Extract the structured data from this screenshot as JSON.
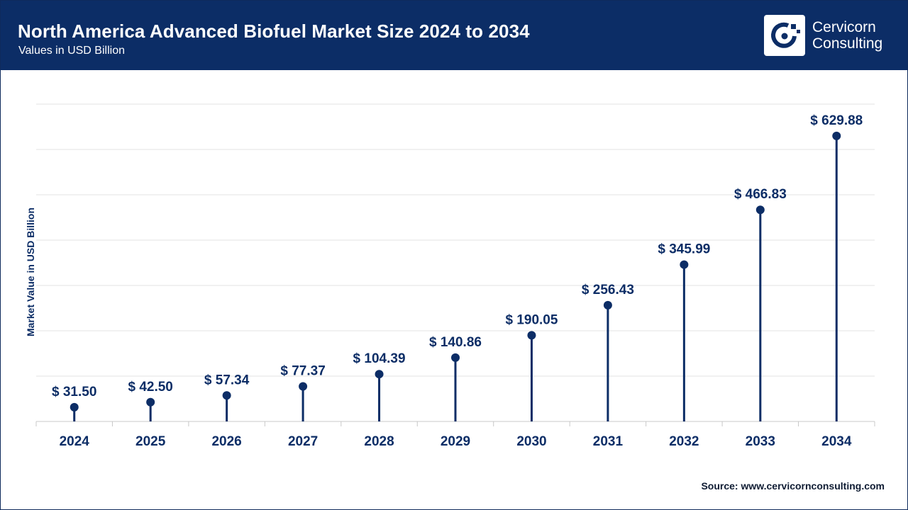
{
  "header": {
    "title": "North America Advanced Biofuel Market Size 2024 to 2034",
    "subtitle": "Values in USD Billion"
  },
  "logo": {
    "line1": "Cervicorn",
    "line2": "Consulting",
    "icon": "cervicorn-logo-icon"
  },
  "source": "Source: www.cervicornconsulting.com",
  "colors": {
    "header_bg": "#0c2d66",
    "marker": "#0c2d66",
    "text_dark": "#0f1c33",
    "grid": "#e3e3e3"
  },
  "chart_data": {
    "type": "lollipop",
    "title": "North America Advanced Biofuel Market Size 2024 to 2034",
    "subtitle": "Values in USD Billion",
    "xlabel": "",
    "ylabel": "Market Value in USD Billion",
    "ylim": [
      0,
      700
    ],
    "grid": true,
    "value_prefix": "$ ",
    "categories": [
      "2024",
      "2025",
      "2026",
      "2027",
      "2028",
      "2029",
      "2030",
      "2031",
      "2032",
      "2033",
      "2034"
    ],
    "values": [
      31.5,
      42.5,
      57.34,
      77.37,
      104.39,
      140.86,
      190.05,
      256.43,
      345.99,
      466.83,
      629.88
    ],
    "labels": [
      "$ 31.50",
      "$ 42.50",
      "$ 57.34",
      "$ 77.37",
      "$ 104.39",
      "$ 140.86",
      "$ 190.05",
      "$ 256.43",
      "$ 345.99",
      "$ 466.83",
      "$ 629.88"
    ]
  }
}
